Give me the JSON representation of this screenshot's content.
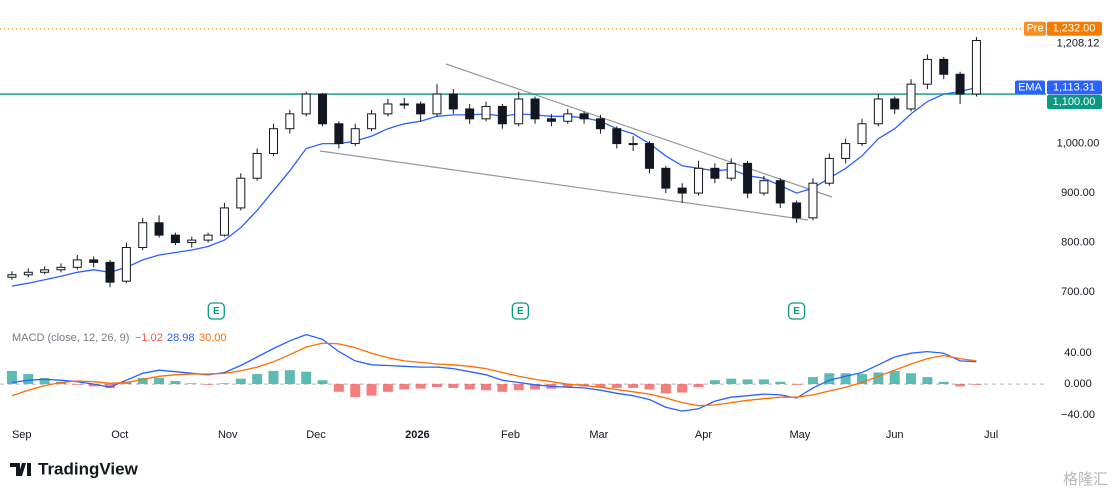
{
  "chart_data": [
    {
      "type": "candlestick",
      "xlim": [
        -0.73,
        63.5
      ],
      "ylim": [
        684,
        1290
      ],
      "yticks": [
        {
          "value": 700,
          "label": "700.00"
        },
        {
          "value": 800,
          "label": "800.00"
        },
        {
          "value": 900,
          "label": "900.00"
        },
        {
          "value": 1000,
          "label": "1,000.00"
        }
      ],
      "up_color": "#ffffff",
      "down_color": "#131722",
      "ohlc": [
        [
          730,
          742,
          725,
          735
        ],
        [
          735,
          748,
          730,
          740
        ],
        [
          740,
          752,
          736,
          745
        ],
        [
          745,
          758,
          740,
          750
        ],
        [
          750,
          775,
          745,
          765
        ],
        [
          765,
          772,
          750,
          760
        ],
        [
          760,
          765,
          710,
          720
        ],
        [
          722,
          800,
          718,
          790
        ],
        [
          790,
          850,
          785,
          840
        ],
        [
          840,
          855,
          810,
          815
        ],
        [
          815,
          820,
          795,
          800
        ],
        [
          800,
          812,
          790,
          805
        ],
        [
          805,
          820,
          800,
          815
        ],
        [
          815,
          880,
          812,
          870
        ],
        [
          870,
          940,
          865,
          930
        ],
        [
          930,
          990,
          925,
          980
        ],
        [
          980,
          1040,
          975,
          1030
        ],
        [
          1030,
          1068,
          1020,
          1060
        ],
        [
          1060,
          1105,
          1055,
          1100
        ],
        [
          1100,
          1102,
          1035,
          1040
        ],
        [
          1040,
          1045,
          990,
          1000
        ],
        [
          1000,
          1040,
          995,
          1030
        ],
        [
          1030,
          1068,
          1025,
          1060
        ],
        [
          1060,
          1090,
          1055,
          1080
        ],
        [
          1080,
          1092,
          1070,
          1080
        ],
        [
          1080,
          1085,
          1045,
          1060
        ],
        [
          1060,
          1120,
          1055,
          1100
        ],
        [
          1100,
          1110,
          1060,
          1070
        ],
        [
          1070,
          1080,
          1040,
          1050
        ],
        [
          1050,
          1085,
          1045,
          1075
        ],
        [
          1075,
          1080,
          1030,
          1040
        ],
        [
          1040,
          1105,
          1035,
          1090
        ],
        [
          1090,
          1095,
          1040,
          1050
        ],
        [
          1050,
          1060,
          1035,
          1045
        ],
        [
          1045,
          1070,
          1040,
          1060
        ],
        [
          1060,
          1065,
          1040,
          1050
        ],
        [
          1050,
          1058,
          1020,
          1030
        ],
        [
          1030,
          1035,
          990,
          1000
        ],
        [
          1000,
          1015,
          985,
          1000
        ],
        [
          1000,
          1005,
          940,
          950
        ],
        [
          950,
          955,
          900,
          910
        ],
        [
          910,
          920,
          880,
          900
        ],
        [
          900,
          965,
          895,
          950
        ],
        [
          950,
          960,
          920,
          930
        ],
        [
          930,
          970,
          925,
          960
        ],
        [
          960,
          965,
          890,
          900
        ],
        [
          900,
          935,
          895,
          925
        ],
        [
          925,
          930,
          870,
          880
        ],
        [
          880,
          885,
          840,
          850
        ],
        [
          850,
          930,
          845,
          920
        ],
        [
          920,
          980,
          915,
          970
        ],
        [
          970,
          1010,
          960,
          1000
        ],
        [
          1000,
          1050,
          995,
          1040
        ],
        [
          1040,
          1100,
          1035,
          1090
        ],
        [
          1090,
          1095,
          1060,
          1070
        ],
        [
          1070,
          1130,
          1065,
          1120
        ],
        [
          1120,
          1180,
          1110,
          1170
        ],
        [
          1170,
          1175,
          1130,
          1140
        ],
        [
          1140,
          1145,
          1080,
          1100
        ],
        [
          1100,
          1215,
          1095,
          1208.12
        ]
      ],
      "last_price": {
        "value": 1208.12,
        "label": "1,208.12"
      },
      "ema": {
        "name": "EMA",
        "color": "#2962ff",
        "value_label": "1,113.31",
        "values": [
          712,
          718,
          725,
          732,
          740,
          745,
          740,
          750,
          765,
          775,
          780,
          785,
          792,
          805,
          830,
          865,
          905,
          945,
          990,
          1000,
          1000,
          1005,
          1015,
          1030,
          1040,
          1045,
          1055,
          1058,
          1058,
          1060,
          1055,
          1060,
          1058,
          1055,
          1055,
          1052,
          1045,
          1030,
          1020,
          1000,
          975,
          955,
          950,
          945,
          948,
          935,
          930,
          915,
          900,
          910,
          930,
          950,
          975,
          1010,
          1030,
          1060,
          1085,
          1100,
          1105,
          1113.31
        ]
      },
      "pre_market": {
        "name": "Pre",
        "value": 1232,
        "label": "1,232.00",
        "color": "#f57c00"
      },
      "hline": {
        "value": 1100,
        "label": "1,100.00",
        "color": "#089981"
      },
      "events": [
        {
          "value": 12.5,
          "label": "E"
        },
        {
          "value": 31.1,
          "label": "E"
        },
        {
          "value": 48.0,
          "label": "E"
        }
      ]
    },
    {
      "type": "macd",
      "title": "MACD (close, 12, 26, 9)",
      "xlim": [
        -0.73,
        63.5
      ],
      "ylim": [
        -53,
        70
      ],
      "yticks": [
        {
          "value": 40,
          "label": "40.00"
        },
        {
          "value": 0,
          "label": "0.000"
        },
        {
          "value": -40,
          "label": "−40.00"
        }
      ],
      "xticks": [
        {
          "value": 0.6,
          "label": "Sep"
        },
        {
          "value": 6.6,
          "label": "Oct"
        },
        {
          "value": 13.2,
          "label": "Nov"
        },
        {
          "value": 18.6,
          "label": "Dec"
        },
        {
          "value": 24.8,
          "label": "2026"
        },
        {
          "value": 30.5,
          "label": "Feb"
        },
        {
          "value": 35.9,
          "label": "Mar"
        },
        {
          "value": 42.3,
          "label": "Apr"
        },
        {
          "value": 48.2,
          "label": "May"
        },
        {
          "value": 54.0,
          "label": "Jun"
        },
        {
          "value": 59.9,
          "label": "Jul"
        }
      ],
      "histogram": {
        "up_color": "#26a69a",
        "down_color": "#ef5350",
        "value_label": "−1.02",
        "values": [
          17,
          13,
          8,
          3,
          -1,
          -3,
          -5,
          3,
          8,
          8,
          4,
          1,
          -1,
          1,
          7,
          13,
          17,
          18,
          16,
          5,
          -10,
          -17,
          -15,
          -10,
          -7,
          -6,
          -4,
          -5,
          -7,
          -8,
          -10,
          -8,
          -7,
          -6,
          -4,
          -3,
          -4,
          -5,
          -5,
          -7,
          -12,
          -11,
          -4,
          5,
          7,
          6,
          6,
          3,
          -1,
          9,
          14,
          14,
          13,
          15,
          17,
          14,
          9,
          3,
          -3,
          -1.02
        ]
      },
      "series": [
        {
          "color": "#2962ff",
          "value_label": "28.98",
          "values": [
            2,
            5,
            6,
            5,
            3,
            0,
            -4,
            5,
            14,
            18,
            16,
            14,
            12,
            15,
            24,
            35,
            46,
            56,
            64,
            58,
            42,
            30,
            25,
            24,
            23,
            22,
            22,
            20,
            16,
            12,
            5,
            2,
            -1,
            -3,
            -4,
            -5,
            -8,
            -12,
            -15,
            -20,
            -30,
            -35,
            -32,
            -22,
            -17,
            -15,
            -13,
            -14,
            -18,
            -5,
            5,
            10,
            15,
            25,
            35,
            40,
            42,
            40,
            30,
            28.98
          ]
        },
        {
          "color": "#ff6d00",
          "value_label": "30.00",
          "values": [
            -15,
            -8,
            -2,
            2,
            4,
            3,
            1,
            2,
            6,
            10,
            12,
            13,
            13,
            14,
            17,
            22,
            29,
            38,
            48,
            53,
            52,
            47,
            40,
            34,
            30,
            28,
            26,
            25,
            23,
            20,
            15,
            10,
            6,
            3,
            0,
            -2,
            -4,
            -7,
            -10,
            -13,
            -18,
            -24,
            -28,
            -27,
            -24,
            -21,
            -19,
            -17,
            -17,
            -14,
            -9,
            -4,
            2,
            10,
            18,
            26,
            33,
            37,
            33,
            30.0
          ]
        }
      ]
    }
  ],
  "brand": "TradingView",
  "watermark": "格隆汇"
}
